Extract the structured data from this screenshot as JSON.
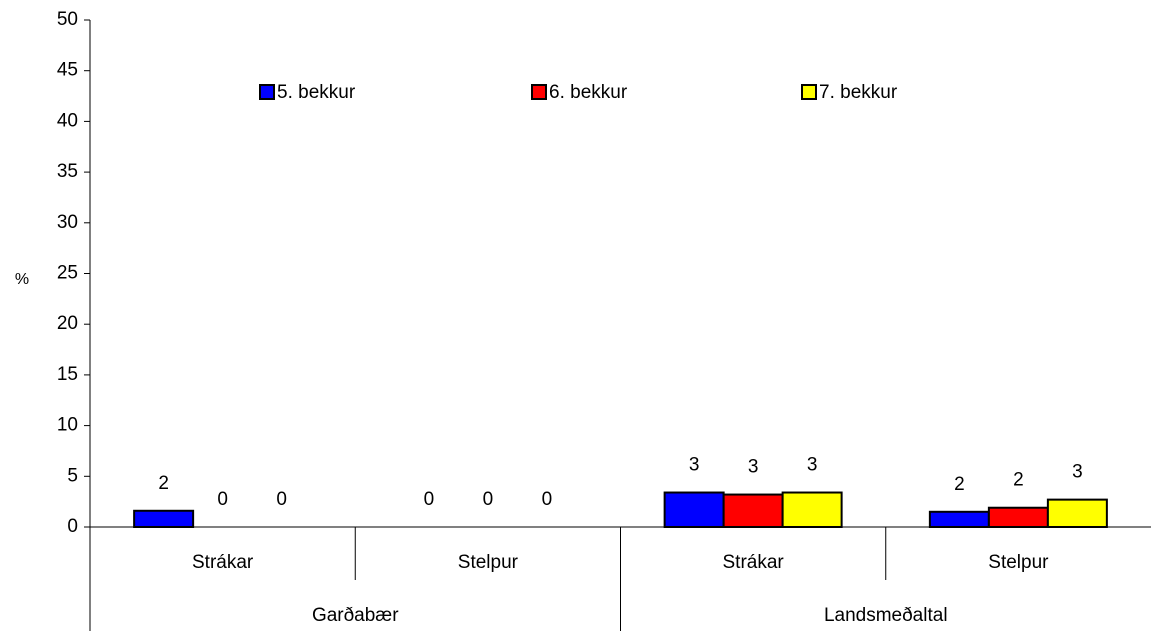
{
  "chart_data": {
    "type": "bar",
    "ylabel": "%",
    "categories": [
      "Strákar",
      "Stelpur",
      "Strákar",
      "Stelpur"
    ],
    "category_groups": [
      "Garðabær",
      "Landsmeðaltal"
    ],
    "series": [
      {
        "name": "5. bekkur",
        "color": "#0000ff",
        "values": [
          1.6,
          0,
          3.4,
          1.5
        ],
        "value_labels": [
          "2",
          "0",
          "3",
          "2"
        ]
      },
      {
        "name": "6. bekkur",
        "color": "#ff0000",
        "values": [
          0,
          0,
          3.2,
          1.9
        ],
        "value_labels": [
          "0",
          "0",
          "3",
          "2"
        ]
      },
      {
        "name": "7. bekkur",
        "color": "#ffff00",
        "values": [
          0,
          0,
          3.4,
          2.7
        ],
        "value_labels": [
          "0",
          "0",
          "3",
          "3"
        ]
      }
    ],
    "ylim": [
      0,
      50
    ],
    "yticks": [
      0,
      5,
      10,
      15,
      20,
      25,
      30,
      35,
      40,
      45,
      50
    ],
    "legend": "top"
  }
}
